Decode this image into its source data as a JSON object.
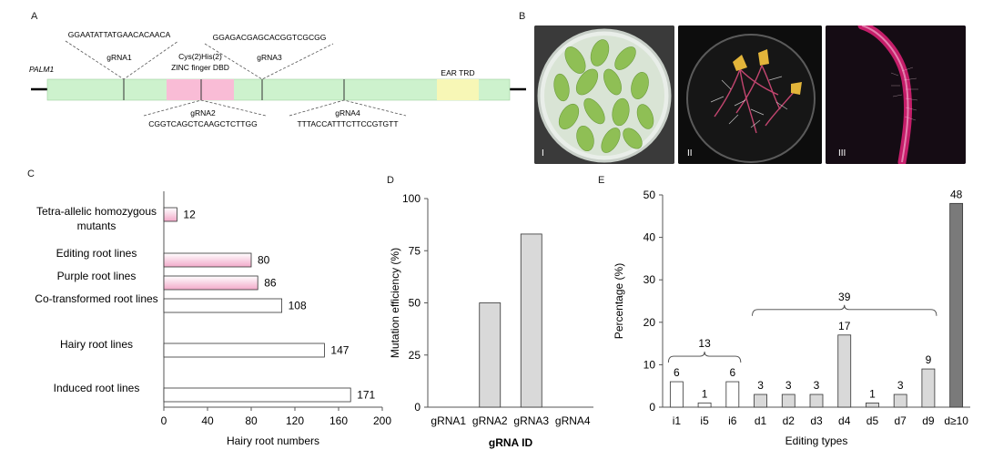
{
  "panels": {
    "a": {
      "letter": "A",
      "gene_label": "PALM1",
      "guides": [
        {
          "name": "gRNA1",
          "seq": "GGAATATTATGAACACAACA"
        },
        {
          "name": "gRNA2",
          "seq": "CGGTCAGCTCAAGCTCTTGG"
        },
        {
          "name": "gRNA3",
          "seq": "GGAGACGAGCACGGTCGCGG"
        },
        {
          "name": "gRNA4",
          "seq": "TTTACCATTTCTTCCGTGTT"
        }
      ],
      "domain1_line1": "Cys(2)His(2)",
      "domain1_line2": "ZINC finger DBD",
      "domain2": "EAR TRD",
      "colors": {
        "exon": "#cdf2cd",
        "zinc": "#f9bcd6",
        "ear": "#f7f7b6"
      }
    },
    "b": {
      "letter": "B",
      "photos": [
        {
          "label": "I",
          "content": "petri-dish-leaves"
        },
        {
          "label": "II",
          "content": "petri-dish-purple-roots"
        },
        {
          "label": "III",
          "content": "purple-root-closeup"
        }
      ]
    },
    "c": {
      "letter": "C"
    },
    "d": {
      "letter": "D"
    },
    "e": {
      "letter": "E"
    }
  },
  "chart_data": [
    {
      "id": "C",
      "type": "bar",
      "orientation": "horizontal",
      "categories": [
        "Tetra-allelic  homozygous mutants",
        "Editing root lines",
        "Purple  root lines",
        "Co-transformed root lines",
        "Hairy root lines",
        "Induced root lines"
      ],
      "category_lines": [
        [
          "Tetra-allelic  homozygous",
          "mutants"
        ],
        [
          "Editing root lines"
        ],
        [
          "Purple  root lines"
        ],
        [
          "Co-transformed root lines"
        ],
        [
          "Hairy root lines"
        ],
        [
          "Induced root lines"
        ]
      ],
      "values": [
        12,
        80,
        86,
        108,
        147,
        171
      ],
      "value_labels": [
        "12",
        "80",
        "86",
        "108",
        "147",
        "171"
      ],
      "fills": [
        "pink",
        "pink",
        "pink",
        "white",
        "white",
        "white"
      ],
      "xlabel": "Hairy root numbers",
      "xlim": [
        0,
        200
      ],
      "xticks": [
        "0",
        "40",
        "80",
        "120",
        "160",
        "200"
      ]
    },
    {
      "id": "D",
      "type": "bar",
      "categories": [
        "gRNA1",
        "gRNA2",
        "gRNA3",
        "gRNA4"
      ],
      "values": [
        0,
        50,
        83,
        0
      ],
      "xlabel": "gRNA ID",
      "ylabel": "Mutation efficiency (%)",
      "ylim": [
        0,
        100
      ],
      "yticks": [
        "0",
        "25",
        "50",
        "75",
        "100"
      ],
      "bar_color": "#d9d9d9"
    },
    {
      "id": "E",
      "type": "bar",
      "categories": [
        "i1",
        "i5",
        "i6",
        "d1",
        "d2",
        "d3",
        "d4",
        "d5",
        "d7",
        "d9",
        "d≥10"
      ],
      "values": [
        6,
        1,
        6,
        3,
        3,
        3,
        17,
        1,
        3,
        9,
        48
      ],
      "value_labels": [
        "6",
        "1",
        "6",
        "3",
        "3",
        "3",
        "17",
        "1",
        "3",
        "9",
        "48"
      ],
      "fill_groups": [
        "white",
        "white",
        "white",
        "light",
        "light",
        "light",
        "light",
        "light",
        "light",
        "light",
        "dark"
      ],
      "group_totals": [
        {
          "label": "13",
          "from": 0,
          "to": 2
        },
        {
          "label": "39",
          "from": 3,
          "to": 9
        }
      ],
      "xlabel": "Editing types",
      "ylabel": "Percentage (%)",
      "ylim": [
        0,
        50
      ],
      "yticks": [
        "0",
        "10",
        "20",
        "30",
        "40",
        "50"
      ],
      "colors": {
        "light": "#d9d9d9",
        "dark": "#7a7a7a"
      }
    }
  ]
}
